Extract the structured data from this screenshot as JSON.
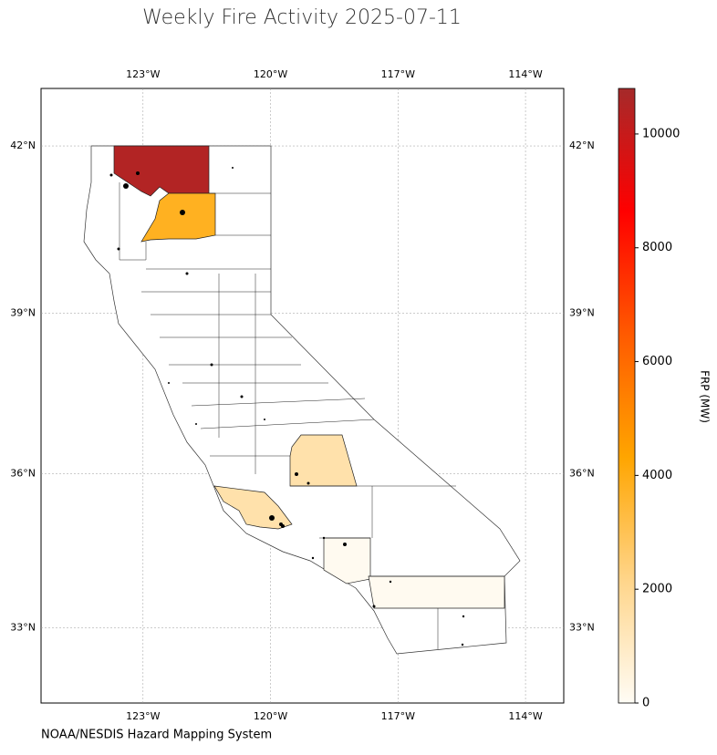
{
  "chart_data": {
    "type": "choropleth",
    "title": "Weekly Fire Activity 2025-07-11",
    "source": "NOAA/NESDIS Hazard Mapping System",
    "colorbar_label": "FRP (MW)",
    "values": [
      10500,
      3800,
      1500,
      1500,
      100,
      100
    ],
    "colormap": [
      "#fffcf5",
      "#ffd58a",
      "#ffa500",
      "#ff5a00",
      "#ff0000",
      "#a52a2a"
    ],
    "clim": [
      0,
      10800
    ],
    "cticks": [
      0,
      2000,
      4000,
      6000,
      8000,
      10000
    ],
    "xlim": [
      -125.4,
      -113.1
    ],
    "ylim": [
      31.5,
      43.0
    ],
    "xticks": [
      {
        "value": -123,
        "label": "123°W"
      },
      {
        "value": -120,
        "label": "120°W"
      },
      {
        "value": -117,
        "label": "117°W"
      },
      {
        "value": -114,
        "label": "114°W"
      }
    ],
    "yticks": [
      {
        "value": 42,
        "label": "42°N"
      },
      {
        "value": 39,
        "label": "39°N"
      },
      {
        "value": 36,
        "label": "36°N"
      },
      {
        "value": 33,
        "label": "33°N"
      }
    ],
    "grid": true
  }
}
